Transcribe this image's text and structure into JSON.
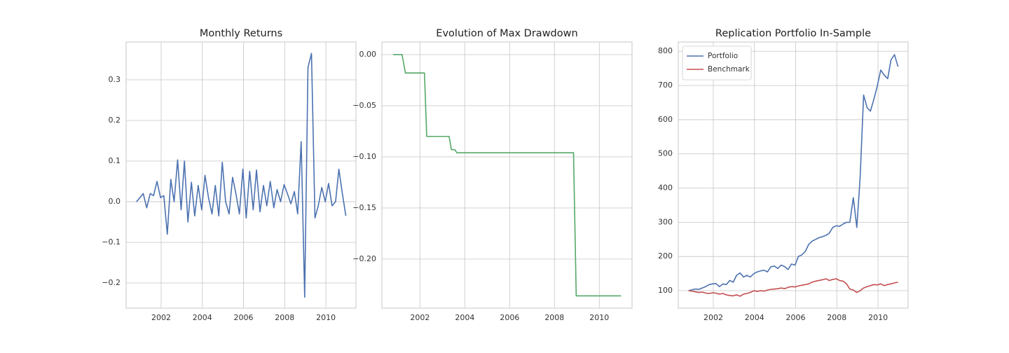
{
  "chart_data": [
    {
      "type": "line",
      "title": "Monthly Returns",
      "x": [
        2000.8,
        2000.97,
        2001.13,
        2001.3,
        2001.47,
        2001.63,
        2001.8,
        2001.97,
        2002.13,
        2002.3,
        2002.47,
        2002.63,
        2002.8,
        2002.97,
        2003.13,
        2003.3,
        2003.47,
        2003.63,
        2003.8,
        2003.97,
        2004.13,
        2004.3,
        2004.47,
        2004.63,
        2004.8,
        2004.97,
        2005.13,
        2005.3,
        2005.47,
        2005.63,
        2005.8,
        2005.97,
        2006.13,
        2006.3,
        2006.47,
        2006.63,
        2006.8,
        2006.97,
        2007.13,
        2007.3,
        2007.47,
        2007.63,
        2007.8,
        2007.97,
        2008.13,
        2008.3,
        2008.47,
        2008.63,
        2008.8,
        2008.97,
        2009.13,
        2009.3,
        2009.47,
        2009.63,
        2009.8,
        2009.97,
        2010.13,
        2010.3,
        2010.47,
        2010.63,
        2010.8,
        2010.97
      ],
      "series": [
        {
          "color": "#4c72b0",
          "values": [
            0.0,
            0.01,
            0.02,
            -0.015,
            0.02,
            0.015,
            0.05,
            0.01,
            0.015,
            -0.08,
            0.055,
            0.0,
            0.103,
            -0.02,
            0.1,
            -0.05,
            0.048,
            -0.035,
            0.04,
            -0.02,
            0.065,
            0.01,
            -0.03,
            0.04,
            -0.035,
            0.097,
            0.0,
            -0.03,
            0.06,
            0.02,
            -0.03,
            0.08,
            -0.04,
            0.075,
            -0.02,
            0.078,
            -0.025,
            0.04,
            -0.01,
            0.05,
            -0.015,
            0.03,
            0.0,
            0.042,
            0.02,
            -0.005,
            0.025,
            -0.03,
            0.148,
            -0.235,
            0.33,
            0.365,
            -0.04,
            -0.01,
            0.035,
            0.0,
            0.045,
            -0.01,
            0.0,
            0.08,
            0.02,
            -0.035
          ]
        }
      ],
      "xlim": [
        2000.3,
        2011.46
      ],
      "xticks": [
        2002,
        2004,
        2006,
        2008,
        2010
      ],
      "ylim": [
        -0.262,
        0.393
      ],
      "yticks": [
        {
          "value": -0.2,
          "label": "−0.2"
        },
        {
          "value": -0.1,
          "label": "−0.1"
        },
        {
          "value": 0,
          "label": "0.0"
        },
        0.1,
        0.2,
        0.3
      ],
      "grid": true
    },
    {
      "type": "line",
      "title": "Evolution of Max Drawdown",
      "x": [
        2000.8,
        2001.2,
        2001.35,
        2002.2,
        2002.3,
        2003.3,
        2003.4,
        2003.55,
        2003.65,
        2008.85,
        2008.97,
        2010.97
      ],
      "series": [
        {
          "color": "#55a868",
          "values": [
            0,
            0,
            -0.018,
            -0.018,
            -0.08,
            -0.08,
            -0.093,
            -0.093,
            -0.096,
            -0.096,
            -0.236,
            -0.236
          ]
        }
      ],
      "xlim": [
        2000.3,
        2011.46
      ],
      "xticks": [
        2002,
        2004,
        2006,
        2008,
        2010
      ],
      "ylim": [
        -0.248,
        0.0123
      ],
      "yticks": [
        {
          "value": -0.2,
          "label": "−0.20"
        },
        {
          "value": -0.15,
          "label": "−0.15"
        },
        {
          "value": -0.1,
          "label": "−0.10"
        },
        {
          "value": -0.05,
          "label": "−0.05"
        },
        {
          "value": 0,
          "label": "0.00"
        }
      ],
      "grid": true
    },
    {
      "type": "line",
      "title": "Replication Portfolio In-Sample",
      "x": [
        2000.8,
        2000.97,
        2001.13,
        2001.3,
        2001.47,
        2001.63,
        2001.8,
        2001.97,
        2002.13,
        2002.3,
        2002.47,
        2002.63,
        2002.8,
        2002.97,
        2003.13,
        2003.3,
        2003.47,
        2003.63,
        2003.8,
        2003.97,
        2004.13,
        2004.3,
        2004.47,
        2004.63,
        2004.8,
        2004.97,
        2005.13,
        2005.3,
        2005.47,
        2005.63,
        2005.8,
        2005.97,
        2006.13,
        2006.3,
        2006.47,
        2006.63,
        2006.8,
        2006.97,
        2007.13,
        2007.3,
        2007.47,
        2007.63,
        2007.8,
        2007.97,
        2008.13,
        2008.3,
        2008.47,
        2008.63,
        2008.8,
        2008.97,
        2009.13,
        2009.3,
        2009.47,
        2009.63,
        2009.8,
        2009.97,
        2010.13,
        2010.3,
        2010.47,
        2010.63,
        2010.8,
        2010.97
      ],
      "series": [
        {
          "name": "Portfolio",
          "color": "#4c72b0",
          "values": [
            100,
            103,
            105,
            104,
            108,
            112,
            118,
            120,
            121,
            112,
            120,
            118,
            130,
            125,
            145,
            152,
            140,
            145,
            140,
            150,
            155,
            158,
            160,
            155,
            170,
            172,
            165,
            175,
            170,
            162,
            178,
            175,
            200,
            205,
            215,
            235,
            245,
            250,
            255,
            258,
            262,
            268,
            285,
            290,
            288,
            295,
            300,
            300,
            372,
            285,
            430,
            672,
            635,
            625,
            660,
            700,
            745,
            730,
            720,
            775,
            790,
            755
          ]
        },
        {
          "name": "Benchmark",
          "color": "#c44e52",
          "values": [
            100,
            99,
            97,
            95,
            96,
            93,
            92,
            94,
            93,
            90,
            92,
            88,
            86,
            85,
            88,
            84,
            90,
            92,
            95,
            100,
            98,
            100,
            99,
            102,
            104,
            105,
            106,
            108,
            106,
            110,
            112,
            111,
            114,
            116,
            118,
            120,
            125,
            128,
            130,
            132,
            135,
            130,
            133,
            135,
            130,
            128,
            120,
            105,
            102,
            95,
            100,
            108,
            112,
            115,
            118,
            117,
            120,
            115,
            118,
            120,
            123,
            125
          ]
        }
      ],
      "xlim": [
        2000.3,
        2011.46
      ],
      "xticks": [
        2002,
        2004,
        2006,
        2008,
        2010
      ],
      "ylim": [
        49,
        827
      ],
      "yticks": [
        100,
        200,
        300,
        400,
        500,
        600,
        700,
        800
      ],
      "grid": true,
      "legend": "upper left"
    }
  ]
}
